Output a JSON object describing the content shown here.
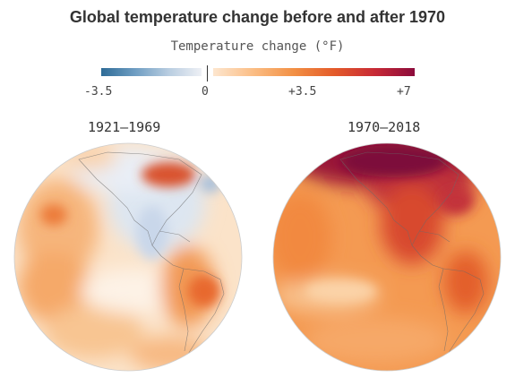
{
  "title": "Global temperature change before and after 1970",
  "legend": {
    "label": "Temperature change (°F)",
    "ticks": [
      "-3.5",
      "0",
      "+3.5",
      "+7"
    ]
  },
  "maps": [
    {
      "period": "1921–1969"
    },
    {
      "period": "1970–2018"
    }
  ],
  "colors": {
    "cold": "#2e6c97",
    "neutral": "#ffffff",
    "warm": "#f29044",
    "hot": "#8c0b3c"
  }
}
